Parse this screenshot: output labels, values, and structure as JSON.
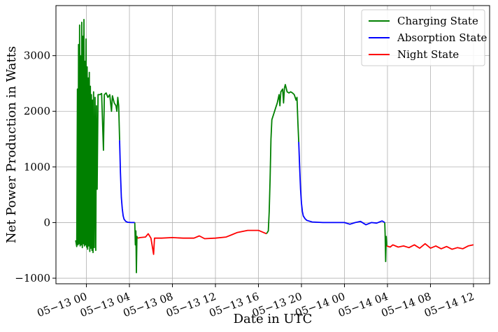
{
  "chart_data": {
    "type": "line",
    "xlabel": "Date in UTC",
    "ylabel": "Net Power Production in Watts",
    "ylim": [
      -1100,
      3900
    ],
    "xlim": [
      "2023-05-12T21:10",
      "2023-05-14T13:30"
    ],
    "grid": true,
    "legend_position": "top-right",
    "yticks": [
      -1000,
      0,
      1000,
      2000,
      3000
    ],
    "ytick_labels": [
      "−1000",
      "0",
      "1000",
      "2000",
      "3000"
    ],
    "xticks": [
      "2023-05-13T00:00",
      "2023-05-13T04:00",
      "2023-05-13T08:00",
      "2023-05-13T12:00",
      "2023-05-13T16:00",
      "2023-05-13T20:00",
      "2023-05-14T00:00",
      "2023-05-14T04:00",
      "2023-05-14T08:00",
      "2023-05-14T12:00"
    ],
    "xtick_labels": [
      "05−13 00",
      "05−13 04",
      "05−13 08",
      "05−13 12",
      "05−13 16",
      "05−13 20",
      "05−14 00",
      "05−14 04",
      "05−14 08",
      "05−14 12"
    ],
    "series": [
      {
        "name": "Charging State",
        "color": "#008000",
        "segments": [
          [
            [
              "2023-05-12T23:00",
              -320
            ],
            [
              "2023-05-12T23:06",
              -430
            ],
            [
              "2023-05-12T23:10",
              2400
            ],
            [
              "2023-05-12T23:13",
              -400
            ],
            [
              "2023-05-12T23:16",
              3200
            ],
            [
              "2023-05-12T23:19",
              -380
            ],
            [
              "2023-05-12T23:22",
              3550
            ],
            [
              "2023-05-12T23:25",
              -420
            ],
            [
              "2023-05-12T23:28",
              3000
            ],
            [
              "2023-05-12T23:31",
              -400
            ],
            [
              "2023-05-12T23:34",
              3600
            ],
            [
              "2023-05-12T23:37",
              -450
            ],
            [
              "2023-05-12T23:40",
              3350
            ],
            [
              "2023-05-12T23:43",
              -380
            ],
            [
              "2023-05-12T23:46",
              3650
            ],
            [
              "2023-05-12T23:49",
              -420
            ],
            [
              "2023-05-12T23:52",
              2900
            ],
            [
              "2023-05-12T23:55",
              -400
            ],
            [
              "2023-05-12T23:58",
              3300
            ],
            [
              "2023-05-13T00:01",
              -440
            ],
            [
              "2023-05-13T00:04",
              2800
            ],
            [
              "2023-05-13T00:07",
              -480
            ],
            [
              "2023-05-13T00:10",
              2600
            ],
            [
              "2023-05-13T00:13",
              -420
            ],
            [
              "2023-05-13T00:16",
              2700
            ],
            [
              "2023-05-13T00:19",
              -520
            ],
            [
              "2023-05-13T00:22",
              2450
            ],
            [
              "2023-05-13T00:25",
              -460
            ],
            [
              "2023-05-13T00:28",
              2300
            ],
            [
              "2023-05-13T00:31",
              -500
            ],
            [
              "2023-05-13T00:34",
              2200
            ],
            [
              "2023-05-13T00:37",
              -540
            ],
            [
              "2023-05-13T00:40",
              2350
            ],
            [
              "2023-05-13T00:44",
              -450
            ],
            [
              "2023-05-13T00:48",
              2250
            ],
            [
              "2023-05-13T00:52",
              -500
            ],
            [
              "2023-05-13T00:56",
              2100
            ],
            [
              "2023-05-13T01:00",
              600
            ],
            [
              "2023-05-13T01:05",
              2300
            ],
            [
              "2023-05-13T01:15",
              2300
            ],
            [
              "2023-05-13T01:25",
              2320
            ],
            [
              "2023-05-13T01:35",
              1300
            ],
            [
              "2023-05-13T01:40",
              2300
            ],
            [
              "2023-05-13T01:50",
              2330
            ],
            [
              "2023-05-13T02:00",
              2250
            ],
            [
              "2023-05-13T02:10",
              2300
            ],
            [
              "2023-05-13T02:20",
              2000
            ],
            [
              "2023-05-13T02:25",
              2280
            ],
            [
              "2023-05-13T02:35",
              2150
            ],
            [
              "2023-05-13T02:45",
              2100
            ],
            [
              "2023-05-13T02:50",
              2000
            ],
            [
              "2023-05-13T02:55",
              2250
            ],
            [
              "2023-05-13T03:00",
              2100
            ],
            [
              "2023-05-13T03:05",
              1480
            ]
          ],
          [
            [
              "2023-05-13T04:30",
              0
            ],
            [
              "2023-05-13T04:33",
              -400
            ],
            [
              "2023-05-13T04:36",
              -150
            ],
            [
              "2023-05-13T04:39",
              -900
            ],
            [
              "2023-05-13T04:42",
              -250
            ],
            [
              "2023-05-13T04:45",
              -280
            ]
          ],
          [
            [
              "2023-05-13T16:45",
              -200
            ],
            [
              "2023-05-13T16:55",
              -150
            ],
            [
              "2023-05-13T17:00",
              200
            ],
            [
              "2023-05-13T17:05",
              800
            ],
            [
              "2023-05-13T17:10",
              1500
            ],
            [
              "2023-05-13T17:15",
              1850
            ],
            [
              "2023-05-13T17:25",
              1950
            ],
            [
              "2023-05-13T17:35",
              2050
            ],
            [
              "2023-05-13T17:45",
              2150
            ],
            [
              "2023-05-13T17:55",
              2300
            ],
            [
              "2023-05-13T18:00",
              2100
            ],
            [
              "2023-05-13T18:05",
              2350
            ],
            [
              "2023-05-13T18:15",
              2400
            ],
            [
              "2023-05-13T18:20",
              2150
            ],
            [
              "2023-05-13T18:25",
              2420
            ],
            [
              "2023-05-13T18:30",
              2480
            ],
            [
              "2023-05-13T18:40",
              2350
            ],
            [
              "2023-05-13T18:50",
              2330
            ],
            [
              "2023-05-13T19:00",
              2350
            ],
            [
              "2023-05-13T19:10",
              2330
            ],
            [
              "2023-05-13T19:20",
              2300
            ],
            [
              "2023-05-13T19:30",
              2200
            ],
            [
              "2023-05-13T19:35",
              2250
            ],
            [
              "2023-05-13T19:40",
              1800
            ],
            [
              "2023-05-13T19:45",
              1450
            ]
          ],
          [
            [
              "2023-05-14T03:45",
              0
            ],
            [
              "2023-05-14T03:47",
              -200
            ],
            [
              "2023-05-14T03:50",
              -700
            ],
            [
              "2023-05-14T03:53",
              -250
            ],
            [
              "2023-05-14T03:56",
              -420
            ]
          ]
        ]
      },
      {
        "name": "Absorption State",
        "color": "#0000ff",
        "segments": [
          [
            [
              "2023-05-13T03:05",
              1480
            ],
            [
              "2023-05-13T03:10",
              900
            ],
            [
              "2023-05-13T03:15",
              450
            ],
            [
              "2023-05-13T03:20",
              250
            ],
            [
              "2023-05-13T03:25",
              120
            ],
            [
              "2023-05-13T03:30",
              60
            ],
            [
              "2023-05-13T03:40",
              20
            ],
            [
              "2023-05-13T03:50",
              5
            ],
            [
              "2023-05-13T04:10",
              0
            ],
            [
              "2023-05-13T04:30",
              0
            ]
          ],
          [
            [
              "2023-05-13T19:45",
              1450
            ],
            [
              "2023-05-13T19:50",
              1000
            ],
            [
              "2023-05-13T19:55",
              600
            ],
            [
              "2023-05-13T20:00",
              350
            ],
            [
              "2023-05-13T20:05",
              200
            ],
            [
              "2023-05-13T20:10",
              120
            ],
            [
              "2023-05-13T20:20",
              70
            ],
            [
              "2023-05-13T20:30",
              40
            ],
            [
              "2023-05-13T21:00",
              10
            ],
            [
              "2023-05-13T22:00",
              0
            ],
            [
              "2023-05-13T23:00",
              0
            ],
            [
              "2023-05-14T00:00",
              0
            ],
            [
              "2023-05-14T00:30",
              -30
            ],
            [
              "2023-05-14T01:00",
              0
            ],
            [
              "2023-05-14T01:30",
              20
            ],
            [
              "2023-05-14T02:00",
              -40
            ],
            [
              "2023-05-14T02:30",
              0
            ],
            [
              "2023-05-14T03:00",
              -10
            ],
            [
              "2023-05-14T03:30",
              30
            ],
            [
              "2023-05-14T03:45",
              0
            ]
          ]
        ]
      },
      {
        "name": "Night State",
        "color": "#ff0000",
        "segments": [
          [
            [
              "2023-05-13T04:45",
              -280
            ],
            [
              "2023-05-13T05:00",
              -270
            ],
            [
              "2023-05-13T05:30",
              -260
            ],
            [
              "2023-05-13T05:45",
              -200
            ],
            [
              "2023-05-13T06:00",
              -280
            ],
            [
              "2023-05-13T06:15",
              -570
            ],
            [
              "2023-05-13T06:20",
              -280
            ],
            [
              "2023-05-13T07:00",
              -280
            ],
            [
              "2023-05-13T08:00",
              -270
            ],
            [
              "2023-05-13T09:00",
              -280
            ],
            [
              "2023-05-13T10:00",
              -280
            ],
            [
              "2023-05-13T10:30",
              -240
            ],
            [
              "2023-05-13T11:00",
              -290
            ],
            [
              "2023-05-13T12:00",
              -280
            ],
            [
              "2023-05-13T13:00",
              -260
            ],
            [
              "2023-05-13T13:30",
              -220
            ],
            [
              "2023-05-13T14:00",
              -180
            ],
            [
              "2023-05-13T15:00",
              -140
            ],
            [
              "2023-05-13T16:00",
              -140
            ],
            [
              "2023-05-13T16:45",
              -200
            ]
          ],
          [
            [
              "2023-05-14T03:56",
              -420
            ],
            [
              "2023-05-14T04:15",
              -440
            ],
            [
              "2023-05-14T04:30",
              -400
            ],
            [
              "2023-05-14T05:00",
              -440
            ],
            [
              "2023-05-14T05:30",
              -420
            ],
            [
              "2023-05-14T06:00",
              -450
            ],
            [
              "2023-05-14T06:30",
              -400
            ],
            [
              "2023-05-14T07:00",
              -460
            ],
            [
              "2023-05-14T07:30",
              -380
            ],
            [
              "2023-05-14T08:00",
              -460
            ],
            [
              "2023-05-14T08:30",
              -420
            ],
            [
              "2023-05-14T09:00",
              -470
            ],
            [
              "2023-05-14T09:30",
              -430
            ],
            [
              "2023-05-14T10:00",
              -480
            ],
            [
              "2023-05-14T10:30",
              -450
            ],
            [
              "2023-05-14T11:00",
              -470
            ],
            [
              "2023-05-14T11:30",
              -420
            ],
            [
              "2023-05-14T12:00",
              -400
            ]
          ]
        ]
      }
    ]
  }
}
